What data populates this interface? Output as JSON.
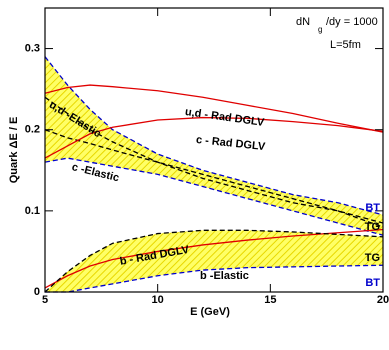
{
  "chart_data": {
    "type": "line",
    "x_label": "E (GeV)",
    "y_label": "Quark ΔE / E",
    "xlim": [
      5,
      20
    ],
    "ylim": [
      0,
      0.35
    ],
    "xticks": [
      5,
      10,
      15,
      20
    ],
    "yticks": [
      0,
      0.1,
      0.2,
      0.3
    ],
    "x": [
      5,
      6,
      7,
      8,
      10,
      12,
      14,
      16,
      18,
      20
    ],
    "series": [
      {
        "color": "#0000cc",
        "style": "dashed",
        "values": [
          0.29,
          0.255,
          0.225,
          0.2,
          0.17,
          0.15,
          0.135,
          0.12,
          0.11,
          0.095
        ]
      },
      {
        "color": "#000000",
        "style": "dashed",
        "values": [
          0.24,
          0.22,
          0.2,
          0.185,
          0.16,
          0.14,
          0.125,
          0.11,
          0.1,
          0.085
        ]
      },
      {
        "color": "#000000",
        "style": "dashed",
        "values": [
          0.2,
          0.19,
          0.183,
          0.175,
          0.16,
          0.145,
          0.13,
          0.115,
          0.1,
          0.08
        ]
      },
      {
        "color": "#0000cc",
        "style": "dashed",
        "values": [
          0.16,
          0.165,
          0.16,
          0.155,
          0.145,
          0.13,
          0.115,
          0.1,
          0.085,
          0.07
        ]
      },
      {
        "color": "#e00000",
        "style": "solid",
        "values": [
          0.245,
          0.252,
          0.255,
          0.253,
          0.248,
          0.24,
          0.23,
          0.22,
          0.208,
          0.197
        ]
      },
      {
        "color": "#e00000",
        "style": "solid",
        "values": [
          0.165,
          0.18,
          0.195,
          0.203,
          0.212,
          0.215,
          0.214,
          0.21,
          0.205,
          0.198
        ]
      },
      {
        "color": "#e00000",
        "style": "solid",
        "values": [
          0.005,
          0.02,
          0.032,
          0.04,
          0.05,
          0.058,
          0.064,
          0.069,
          0.073,
          0.077
        ]
      },
      {
        "color": "#000000",
        "style": "dashed",
        "values": [
          0,
          0.025,
          0.045,
          0.06,
          0.072,
          0.076,
          0.076,
          0.074,
          0.071,
          0.068
        ]
      },
      {
        "color": "#0000cc",
        "style": "dashed",
        "values": [
          0,
          0,
          0.005,
          0.01,
          0.02,
          0.027,
          0.03,
          0.031,
          0.032,
          0.033
        ]
      }
    ],
    "annotations": [
      "dN",
      "g",
      "/dy = 1000",
      "L=5fm",
      "u,d - Rad DGLV",
      "c - Rad DGLV",
      "u,d -Elastic",
      "c -Elastic",
      "b - Rad DGLV",
      "b -Elastic",
      "BT",
      "TG",
      "TG",
      "BT"
    ]
  }
}
